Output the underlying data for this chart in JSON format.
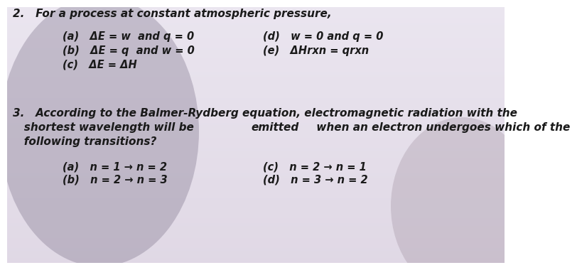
{
  "background_color": "#d8d0d8",
  "background_light": "#e8e4ec",
  "text_color": "#1a1a1a",
  "q2_header": "2.   For a process at constant atmospheric pressure,",
  "q2_a": "(a)   ΔE = w  and q = 0",
  "q2_b": "(b)   ΔE = q  and w = 0",
  "q2_c": "(c)   ΔE = ΔH",
  "q2_d": "(d)   w = 0 and q = 0",
  "q2_e": "(e)   ΔHrxn = qrxn",
  "q3_line1": "3.   According to the Balmer-Rydberg equation, electromagnetic radiation with the",
  "q3_line2_pre": "   shortest wavelength will be ",
  "q3_line2_bold": "emitted",
  "q3_line2_post": " when an electron undergoes which of the",
  "q3_line3": "   following transitions?",
  "q3_a": "(a)   n = 1 → n = 2",
  "q3_b": "(b)   n = 2 → n = 3",
  "q3_c": "(c)   n = 2 → n = 1",
  "q3_d": "(d)   n = 3 → n = 2",
  "font_size_header": 11.0,
  "font_size_options": 10.5,
  "font_size_q3header": 11.0
}
